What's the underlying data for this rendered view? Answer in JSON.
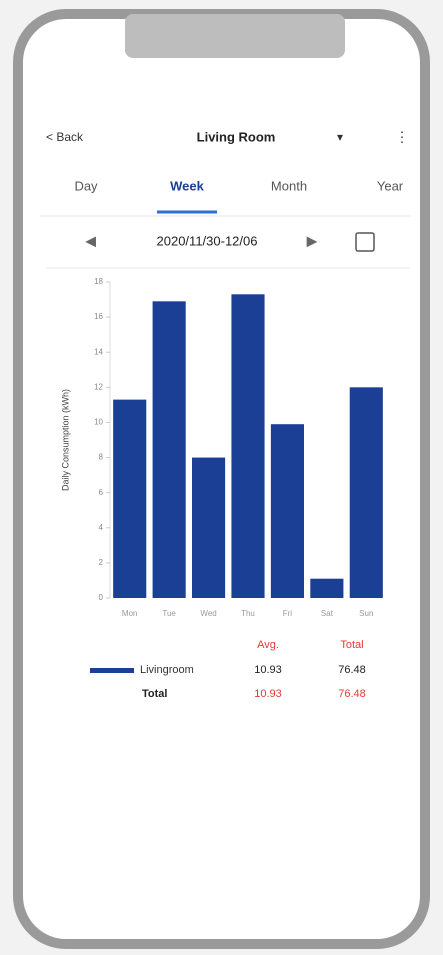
{
  "header": {
    "back": "< Back",
    "title": "Living Room",
    "dropdown": "▾",
    "menu": "⋮"
  },
  "tabs": [
    "Day",
    "Week",
    "Month",
    "Year"
  ],
  "date_range": "2020/11/30-12/06",
  "chart_data": {
    "type": "bar",
    "y_label": "Daily Consumption (kWh)",
    "categories": [
      "Mon",
      "Tue",
      "Wed",
      "Thu",
      "Fri",
      "Sat",
      "Sun"
    ],
    "series": [
      {
        "name": "Livingroom",
        "color": "#1b3f94",
        "values": [
          11.3,
          16.9,
          8.0,
          17.3,
          9.9,
          1.1,
          12.0
        ]
      }
    ],
    "ylim": [
      0,
      18
    ],
    "yticks": [
      0,
      2,
      4,
      6,
      8,
      10,
      12,
      14,
      16,
      18
    ]
  },
  "summary": {
    "headers": [
      "Avg.",
      "Total"
    ],
    "row_values": [
      "10.93",
      "76.48"
    ],
    "total_label": "Total",
    "total_values": [
      "10.93",
      "76.48"
    ]
  }
}
